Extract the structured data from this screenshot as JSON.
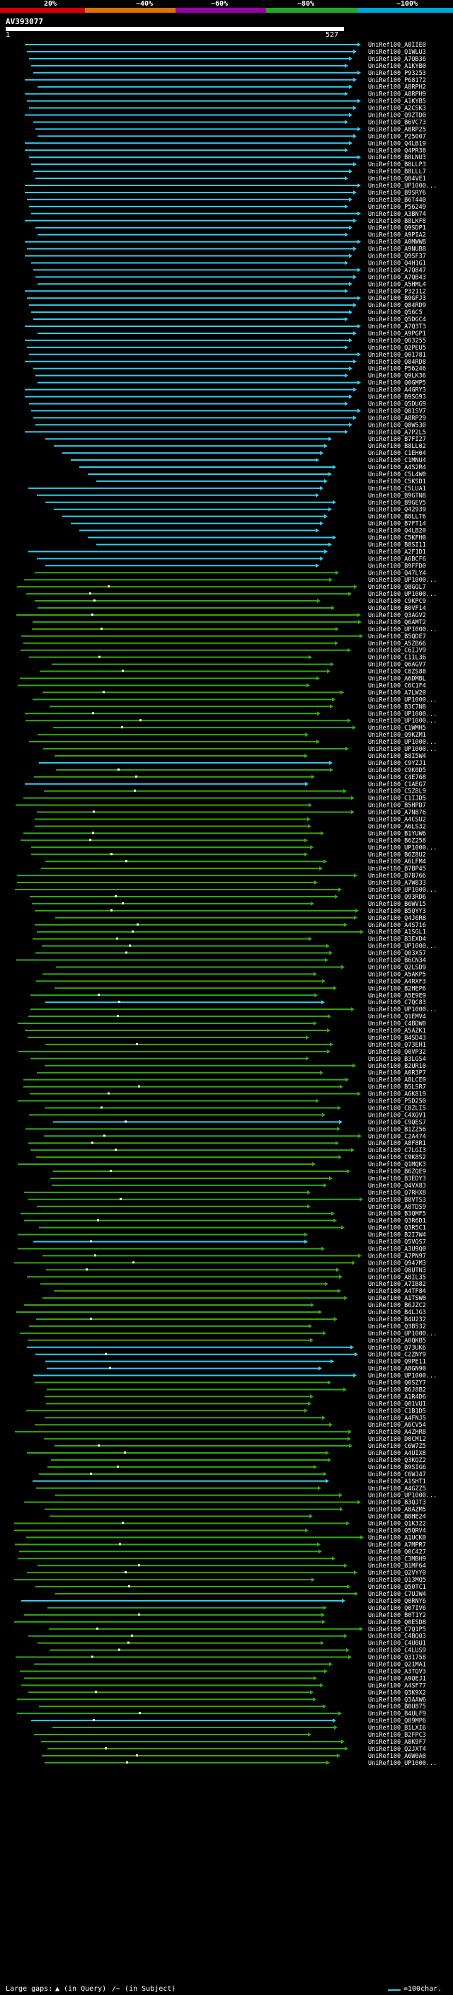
{
  "scale": {
    "labels": [
      "20%",
      "~40%",
      "~60%",
      "~80%",
      "~100%"
    ],
    "colors": [
      "#d40000",
      "#e07000",
      "#9900aa",
      "#22aa22",
      "#00a6d6"
    ]
  },
  "query": {
    "title": "AV393077",
    "start": "1",
    "end": "527"
  },
  "colors": {
    "high": "#33ccee",
    "mid": "#33aa11",
    "gap_query": "#ffffff",
    "gap_subject": "#000000"
  },
  "hits": [
    "UniRef100_A8IIE0",
    "UniRef100_Q1WLU3",
    "UniRef100_A7QB36",
    "UniRef100_A1KYB0",
    "UniRef100_P93253",
    "UniRef100_P68172",
    "UniRef100_A8RPH2",
    "UniRef100_A8RPH9",
    "UniRef100_A1KYB5",
    "UniRef100_A2CSK3",
    "UniRef100_Q9ZTD0",
    "UniRef100_B6VC73",
    "UniRef100_A8RP25",
    "UniRef100_P25007",
    "UniRef100_Q4LB19",
    "UniRef100_Q4PR38",
    "UniRef100_B8LNU3",
    "UniRef100_B8LLP3",
    "UniRef100_B8LLL7",
    "UniRef100_Q84VE1",
    "UniRef100_UP1000...",
    "UniRef100_B9SRY6",
    "UniRef100_B6T440",
    "UniRef100_P56249",
    "UniRef100_A3BN74",
    "UniRef100_B8LKF8",
    "UniRef100_Q9SDP1",
    "UniRef100_A9PIA2",
    "UniRef100_A0MWW8",
    "UniRef100_A9NUB8",
    "UniRef100_Q9SF37",
    "UniRef100_Q4H1G1",
    "UniRef100_A7Q847",
    "UniRef100_A7QB43",
    "UniRef100_A5HML4",
    "UniRef100_P32112",
    "UniRef100_B9GFJ3",
    "UniRef100_Q84RD9",
    "UniRef100_Q56C5",
    "UniRef100_Q5DGC4",
    "UniRef100_A7Q3T3",
    "UniRef100_A9PGP1",
    "UniRef100_Q03255",
    "UniRef100_Q2PEU5",
    "UniRef100_Q01781",
    "UniRef100_Q84RD8",
    "UniRef100_P56246",
    "UniRef100_Q9LK36",
    "UniRef100_Q0GMP5",
    "UniRef100_A4GRY3",
    "UniRef100_B9SG93",
    "UniRef100_Q5DUG9",
    "UniRef100_Q01SV7",
    "UniRef100_A8RP29",
    "UniRef100_Q8W530",
    "UniRef100_A7P2L5",
    "UniRef100_B7FI27",
    "UniRef100_B8LL02",
    "UniRef100_C1EH04",
    "UniRef100_C1MNU4",
    "UniRef100_A4S2R4",
    "UniRef100_C5L4W0",
    "UniRef100_C5KSD1",
    "UniRef100_C5LUA1",
    "UniRef100_B9GTN8",
    "UniRef100_B9GEV5",
    "UniRef100_Q42939",
    "UniRef100_B8LLT6",
    "UniRef100_B7FT14",
    "UniRef100_Q4LB20",
    "UniRef100_C5KFH0",
    "UniRef100_B8SI11",
    "UniRef100_A2F1D1",
    "UniRef100_A6BCF6",
    "UniRef100_B9FFD0",
    "UniRef100_Q47LY4",
    "UniRef100_UP1000...",
    "UniRef100_Q8GQL7",
    "UniRef100_UP1000...",
    "UniRef100_C9KPC9",
    "UniRef100_B0VF14",
    "UniRef100_Q3AGV2",
    "UniRef100_Q6AMT2",
    "UniRef100_UP1000...",
    "UniRef100_B5QDE7",
    "UniRef100_A5ZB66",
    "UniRef100_C6IJV9",
    "UniRef100_C11L36",
    "UniRef100_Q6AGV7",
    "UniRef100_C8ZS88",
    "UniRef100_A6DMBL",
    "UniRef100_C6C1F4",
    "UniRef100_A7LW20",
    "UniRef100_UP1000...",
    "UniRef100_B3C7N8",
    "UniRef100_UP1000...",
    "UniRef100_UP1000...",
    "UniRef100_C1WMH5",
    "UniRef100_Q9KZM1",
    "UniRef100_UP1000...",
    "UniRef100_UP1000...",
    "UniRef100_B8I5W4",
    "UniRef100_C9YZJ1",
    "UniRef100_C9K0D5",
    "UniRef100_C4E768",
    "UniRef100_C1AEG7",
    "UniRef100_C5Z8L9",
    "UniRef100_C1IJD5",
    "UniRef100_B5HPD7",
    "UniRef100_A7N876",
    "UniRef100_A4CSU2",
    "UniRef100_A6LS32",
    "UniRef100_B1YUW6",
    "UniRef100_B6Z258",
    "UniRef100_UP1000...",
    "UniRef100_B6Z8U2",
    "UniRef100_A6LFM4",
    "UniRef100_B7BP45",
    "UniRef100_B7B766",
    "UniRef100_A7W833",
    "UniRef100_UP1000...",
    "UniRef100_Q93RD6",
    "UniRef100_B6WV15",
    "UniRef100_B5QYY3",
    "UniRef100_Q4J6R8",
    "UniRef100_A4S716",
    "UniRef100_A1SGL1",
    "UniRef100_B3EXD4",
    "UniRef100_UP1000...",
    "UniRef100_Q03X57",
    "UniRef100_B6CN34",
    "UniRef100_Q2LSD9",
    "UniRef100_A5AKP5",
    "UniRef100_A4RXF3",
    "UniRef100_B2HEP6",
    "UniRef100_A5E9E9",
    "UniRef100_C7QC83",
    "UniRef100_UP1000...",
    "UniRef100_Q1EMV4",
    "UniRef100_C4BDW0",
    "UniRef100_A5AZK1",
    "UniRef100_B4SD43",
    "UniRef100_Q73EH1",
    "UniRef100_Q0VP32",
    "UniRef100_B3LGS4",
    "UniRef100_B2UR10",
    "UniRef100_A0R3P7",
    "UniRef100_A8LCE0",
    "UniRef100_B5LSR7",
    "UniRef100_A6K819",
    "UniRef100_P5D250",
    "UniRef100_C8ZLI5",
    "UniRef100_C4XQV1",
    "UniRef100_C9QES7",
    "UniRef100_B1ZZ56",
    "UniRef100_C2A474",
    "UniRef100_A8F8R1",
    "UniRef100_C7LGI3",
    "UniRef100_C9K8S2",
    "UniRef100_Q1MQK3",
    "UniRef100_B6ZQE9",
    "UniRef100_B3EDY3",
    "UniRef100_Q4VX83",
    "UniRef100_Q7RHX8",
    "UniRef100_B8VTS3",
    "UniRef100_A8TDS9",
    "UniRef100_B3QMF5",
    "UniRef100_Q3R6D1",
    "UniRef100_Q3R5C1",
    "UniRef100_B2I7W4",
    "UniRef100_Q5VQS7",
    "UniRef100_A3U9Q0",
    "UniRef100_A7PN97",
    "UniRef100_Q947M3",
    "UniRef100_Q8UTN3",
    "UniRef100_A8IL35",
    "UniRef100_A7IB82",
    "UniRef100_A4TF84",
    "UniRef100_A1TSW0",
    "UniRef100_B6JZC2",
    "UniRef100_B4LJG3",
    "UniRef100_B4U232",
    "UniRef100_Q3B532",
    "UniRef100_UP1000...",
    "UniRef100_A0QKB5",
    "UniRef100_Q73UK6",
    "UniRef100_C2ZNY9",
    "UniRef100_Q9PE11",
    "UniRef100_A8GN90",
    "UniRef100_UP1000...",
    "UniRef100_Q0SZY7",
    "UniRef100_B6J8B2",
    "UniRef100_A1R4D6",
    "UniRef100_Q01VU1",
    "UniRef100_C1B1D5",
    "UniRef100_A4FNJ5",
    "UniRef100_A6CV54",
    "UniRef100_A4ZHR8",
    "UniRef100_D0CM12",
    "UniRef100_C6W7Z5",
    "UniRef100_A4UIX8",
    "UniRef100_Q3KQZ2",
    "UniRef100_B9SIG6",
    "UniRef100_C6WJ47",
    "UniRef100_A1SHT1",
    "UniRef100_A4GZZ5",
    "UniRef100_UP1000...",
    "UniRef100_B3QJT3",
    "UniRef100_A8AZM5",
    "UniRef100_B8HE24",
    "UniRef100_Q1K322",
    "UniRef100_Q5QRV4",
    "UniRef100_A1UCK0",
    "UniRef100_A7MPR7",
    "UniRef100_Q0C427",
    "UniRef100_C3MBH9",
    "UniRef100_B1MF64",
    "UniRef100_Q2VYY0",
    "UniRef100_Q13MQ5",
    "UniRef100_Q50TC1",
    "UniRef100_C7UJW4",
    "UniRef100_Q0RNY6",
    "UniRef100_Q07IV6",
    "UniRef100_B0T1Y2",
    "UniRef100_Q0ESD8",
    "UniRef100_C7Q1P5",
    "UniRef100_C4BQ03",
    "UniRef100_C4U0U1",
    "UniRef100_C4LUS9",
    "UniRef100_Q31758",
    "UniRef100_Q21MA1",
    "UniRef100_A3TQV3",
    "UniRef100_A9QEJ1",
    "UniRef100_A4SF77",
    "UniRef100_Q3K9X2",
    "UniRef100_Q3AAW6",
    "UniRef100_B0U875",
    "UniRef100_B4ULF9",
    "UniRef100_Q89MP6",
    "UniRef100_B1LXI6",
    "UniRef100_B2FPC3",
    "UniRef100_A8K9F7",
    "UniRef100_Q2JXT4",
    "UniRef100_A6W0A0",
    "UniRef100_UP1000..."
  ],
  "footer": {
    "large_gaps_label": "Large gaps:",
    "in_query": "(in Query)",
    "in_subject": "/~ (in Subject)",
    "legend_text": "=100char."
  }
}
